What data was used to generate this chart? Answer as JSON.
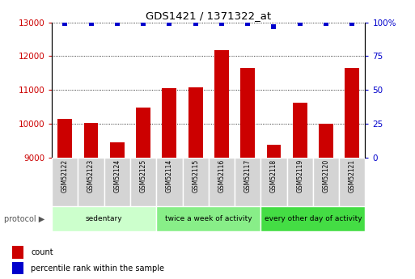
{
  "title": "GDS1421 / 1371322_at",
  "samples": [
    "GSM52122",
    "GSM52123",
    "GSM52124",
    "GSM52125",
    "GSM52114",
    "GSM52115",
    "GSM52116",
    "GSM52117",
    "GSM52118",
    "GSM52119",
    "GSM52120",
    "GSM52121"
  ],
  "counts": [
    10150,
    10020,
    9450,
    10480,
    11050,
    11080,
    12180,
    11660,
    9380,
    10620,
    10010,
    11660
  ],
  "percentile_ranks": [
    99,
    99,
    99,
    99,
    99,
    99,
    99,
    99,
    97,
    99,
    99,
    99
  ],
  "ylim_left": [
    9000,
    13000
  ],
  "ylim_right": [
    0,
    100
  ],
  "yticks_left": [
    9000,
    10000,
    11000,
    12000,
    13000
  ],
  "yticks_right": [
    0,
    25,
    50,
    75,
    100
  ],
  "ytick_right_labels": [
    "0",
    "25",
    "50",
    "75",
    "100%"
  ],
  "bar_color": "#cc0000",
  "dot_color": "#0000cc",
  "groups": [
    {
      "label": "sedentary",
      "start": 0,
      "end": 4,
      "color": "#ccffcc"
    },
    {
      "label": "twice a week of activity",
      "start": 4,
      "end": 8,
      "color": "#88ee88"
    },
    {
      "label": "every other day of activity",
      "start": 8,
      "end": 12,
      "color": "#44dd44"
    }
  ],
  "protocol_label": "protocol",
  "legend_count_label": "count",
  "legend_pct_label": "percentile rank within the sample",
  "background_color": "#ffffff",
  "tick_label_color_left": "#cc0000",
  "tick_label_color_right": "#0000cc",
  "label_box_color": "#d4d4d4",
  "label_box_edge_color": "#ffffff"
}
